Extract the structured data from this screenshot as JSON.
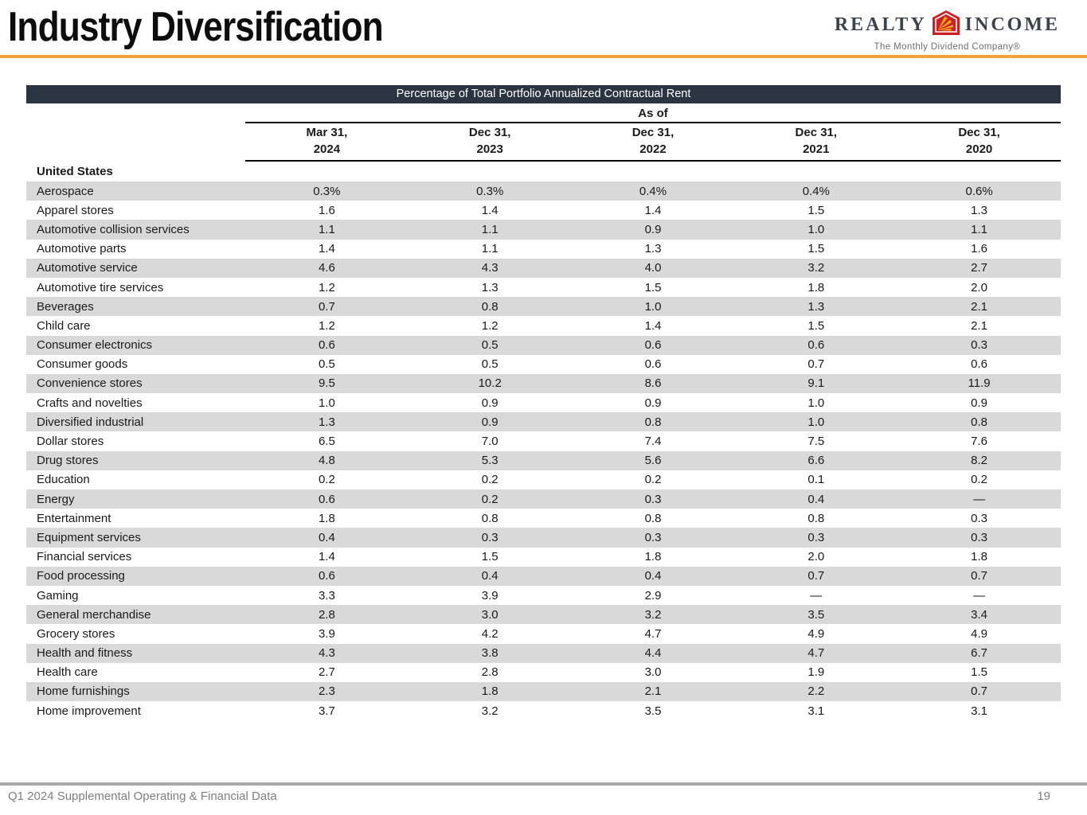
{
  "header": {
    "title": "Industry Diversification",
    "accent_color": "#F2A23B",
    "logo": {
      "word_left": "REALTY",
      "word_right": "INCOME",
      "tagline": "The Monthly Dividend Company®",
      "house_red": "#CE2127",
      "ray_yellow": "#F5A81C"
    }
  },
  "table": {
    "banner": "Percentage of Total Portfolio Annualized Contractual Rent",
    "banner_bg": "#2B3542",
    "as_of": "As of",
    "stripe_color": "#D9D9D9",
    "columns": [
      {
        "line1": "Mar 31,",
        "line2": "2024"
      },
      {
        "line1": "Dec 31,",
        "line2": "2023"
      },
      {
        "line1": "Dec 31,",
        "line2": "2022"
      },
      {
        "line1": "Dec 31,",
        "line2": "2021"
      },
      {
        "line1": "Dec 31,",
        "line2": "2020"
      }
    ],
    "section": "United States",
    "rows": [
      {
        "label": "Aerospace",
        "values": [
          "0.3%",
          "0.3%",
          "0.4%",
          "0.4%",
          "0.6%"
        ]
      },
      {
        "label": "Apparel stores",
        "values": [
          "1.6",
          "1.4",
          "1.4",
          "1.5",
          "1.3"
        ]
      },
      {
        "label": "Automotive collision services",
        "values": [
          "1.1",
          "1.1",
          "0.9",
          "1.0",
          "1.1"
        ]
      },
      {
        "label": "Automotive parts",
        "values": [
          "1.4",
          "1.1",
          "1.3",
          "1.5",
          "1.6"
        ]
      },
      {
        "label": "Automotive service",
        "values": [
          "4.6",
          "4.3",
          "4.0",
          "3.2",
          "2.7"
        ]
      },
      {
        "label": "Automotive tire services",
        "values": [
          "1.2",
          "1.3",
          "1.5",
          "1.8",
          "2.0"
        ]
      },
      {
        "label": "Beverages",
        "values": [
          "0.7",
          "0.8",
          "1.0",
          "1.3",
          "2.1"
        ]
      },
      {
        "label": "Child care",
        "values": [
          "1.2",
          "1.2",
          "1.4",
          "1.5",
          "2.1"
        ]
      },
      {
        "label": "Consumer electronics",
        "values": [
          "0.6",
          "0.5",
          "0.6",
          "0.6",
          "0.3"
        ]
      },
      {
        "label": "Consumer goods",
        "values": [
          "0.5",
          "0.5",
          "0.6",
          "0.7",
          "0.6"
        ]
      },
      {
        "label": "Convenience stores",
        "values": [
          "9.5",
          "10.2",
          "8.6",
          "9.1",
          "11.9"
        ]
      },
      {
        "label": "Crafts and novelties",
        "values": [
          "1.0",
          "0.9",
          "0.9",
          "1.0",
          "0.9"
        ]
      },
      {
        "label": "Diversified industrial",
        "values": [
          "1.3",
          "0.9",
          "0.8",
          "1.0",
          "0.8"
        ]
      },
      {
        "label": "Dollar stores",
        "values": [
          "6.5",
          "7.0",
          "7.4",
          "7.5",
          "7.6"
        ]
      },
      {
        "label": "Drug stores",
        "values": [
          "4.8",
          "5.3",
          "5.6",
          "6.6",
          "8.2"
        ]
      },
      {
        "label": "Education",
        "values": [
          "0.2",
          "0.2",
          "0.2",
          "0.1",
          "0.2"
        ]
      },
      {
        "label": "Energy",
        "values": [
          "0.6",
          "0.2",
          "0.3",
          "0.4",
          "—"
        ]
      },
      {
        "label": "Entertainment",
        "values": [
          "1.8",
          "0.8",
          "0.8",
          "0.8",
          "0.3"
        ]
      },
      {
        "label": "Equipment services",
        "values": [
          "0.4",
          "0.3",
          "0.3",
          "0.3",
          "0.3"
        ]
      },
      {
        "label": "Financial services",
        "values": [
          "1.4",
          "1.5",
          "1.8",
          "2.0",
          "1.8"
        ]
      },
      {
        "label": "Food processing",
        "values": [
          "0.6",
          "0.4",
          "0.4",
          "0.7",
          "0.7"
        ]
      },
      {
        "label": "Gaming",
        "values": [
          "3.3",
          "3.9",
          "2.9",
          "—",
          "—"
        ]
      },
      {
        "label": "General merchandise",
        "values": [
          "2.8",
          "3.0",
          "3.2",
          "3.5",
          "3.4"
        ]
      },
      {
        "label": "Grocery stores",
        "values": [
          "3.9",
          "4.2",
          "4.7",
          "4.9",
          "4.9"
        ]
      },
      {
        "label": "Health and fitness",
        "values": [
          "4.3",
          "3.8",
          "4.4",
          "4.7",
          "6.7"
        ]
      },
      {
        "label": "Health care",
        "values": [
          "2.7",
          "2.8",
          "3.0",
          "1.9",
          "1.5"
        ]
      },
      {
        "label": "Home furnishings",
        "values": [
          "2.3",
          "1.8",
          "2.1",
          "2.2",
          "0.7"
        ]
      },
      {
        "label": "Home improvement",
        "values": [
          "3.7",
          "3.2",
          "3.5",
          "3.1",
          "3.1"
        ]
      }
    ]
  },
  "footer": {
    "left": "Q1 2024 Supplemental Operating & Financial Data",
    "page": "19"
  }
}
